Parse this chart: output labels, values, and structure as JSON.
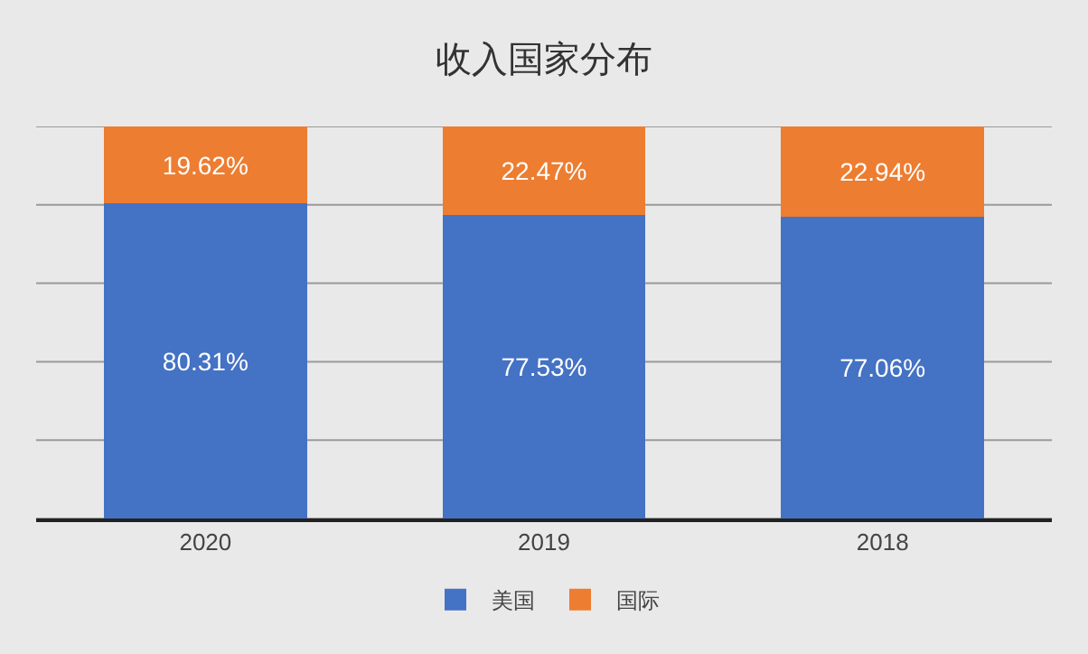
{
  "chart_data": {
    "type": "bar",
    "title": "收入国家分布",
    "categories": [
      "2020",
      "2019",
      "2018"
    ],
    "stacked": true,
    "series": [
      {
        "name": "美国",
        "color": "#4472c4",
        "values": [
          80.31,
          77.53,
          77.06
        ],
        "value_labels": [
          "80.31%",
          "77.53%",
          "77.06%"
        ]
      },
      {
        "name": "国际",
        "color": "#ed7d31",
        "values": [
          19.62,
          22.47,
          22.94
        ],
        "value_labels": [
          "19.62%",
          "22.47%",
          "22.94%"
        ]
      }
    ],
    "ylim": [
      0,
      100
    ],
    "yticks": [
      {
        "value": 0,
        "label": null
      },
      {
        "value": 20,
        "label": null
      },
      {
        "value": 40,
        "label": null
      },
      {
        "value": 60,
        "label": null
      },
      {
        "value": 80,
        "label": null
      },
      {
        "value": 100,
        "label": null
      }
    ],
    "grid": "y",
    "legend": "bottom",
    "tick_labels": "x"
  }
}
